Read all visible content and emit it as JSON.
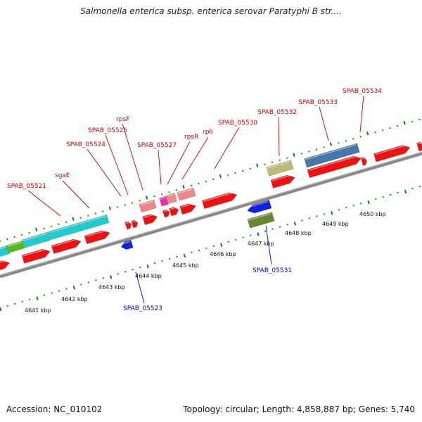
{
  "title": "Salmonella enterica subsp. enterica serovar Paratyphi B str....",
  "footer": {
    "accession": "Accession: NC_010102",
    "summary": "Topology: circular; Length: 4,858,887 bp; Genes: 5,740"
  },
  "colors": {
    "backbone": "#8a8a8a",
    "gene_label_forward": "#cc0000",
    "gene_label_reverse": "#0000cc",
    "tick_major": "#1a7a1a",
    "tick_minor": "#1a9a1a"
  },
  "scale_labels": [
    "4641 kbp",
    "4642 kbp",
    "4643 kbp",
    "4644 kbp",
    "4645 kbp",
    "4646 kbp",
    "4647 kbp",
    "4648 kbp",
    "4649 kbp",
    "4650 kbp"
  ],
  "gene_labels_forward": [
    "SPAB_05521",
    "sgaE",
    "SPAB_05524",
    "SPAB_05525",
    "rpsF",
    "SPAB_05527",
    "rpsR",
    "rplI",
    "SPAB_05530",
    "SPAB_05532",
    "SPAB_05533",
    "SPAB_05534"
  ],
  "gene_labels_reverse": [
    "SPAB_05523",
    "SPAB_05531"
  ]
}
